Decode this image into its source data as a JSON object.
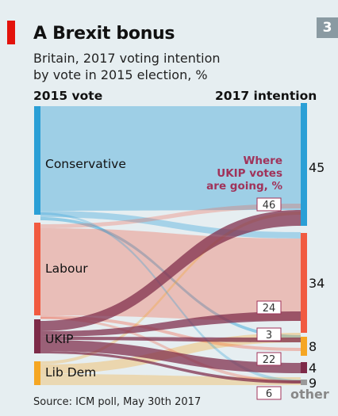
{
  "header": {
    "title": "A Brexit bonus",
    "subtitle_line1": "Britain, 2017 voting intention",
    "subtitle_line2": "by vote in 2015 election, %",
    "chart_number": "3"
  },
  "columns": {
    "left_heading": "2015 vote",
    "right_heading": "2017 intention"
  },
  "source": "Source: ICM poll, May 30th 2017",
  "colors": {
    "accent_red": "#e3120b",
    "conservative": "#2a9fd6",
    "labour": "#f15a40",
    "ukip": "#7d2a48",
    "libdem": "#f5a623",
    "other": "#999999",
    "annotation": "#a0335a"
  },
  "chart_data": {
    "type": "sankey",
    "left_nodes": [
      {
        "name": "Conservative"
      },
      {
        "name": "Labour"
      },
      {
        "name": "UKIP"
      },
      {
        "name": "Lib Dem"
      }
    ],
    "right_nodes": [
      {
        "value": 45
      },
      {
        "value": 34
      },
      {
        "value": 8
      },
      {
        "value": 4
      },
      {
        "value": 9,
        "label": "other"
      }
    ],
    "annotation_title": "Where UKIP votes are going, %",
    "ukip_flows": [
      {
        "target_index": 0,
        "value": 46
      },
      {
        "target_index": 1,
        "value": 24
      },
      {
        "target_index": 2,
        "value": 3
      },
      {
        "target_index": 3,
        "value": 22
      },
      {
        "target_index": 4,
        "value": 6
      }
    ]
  }
}
